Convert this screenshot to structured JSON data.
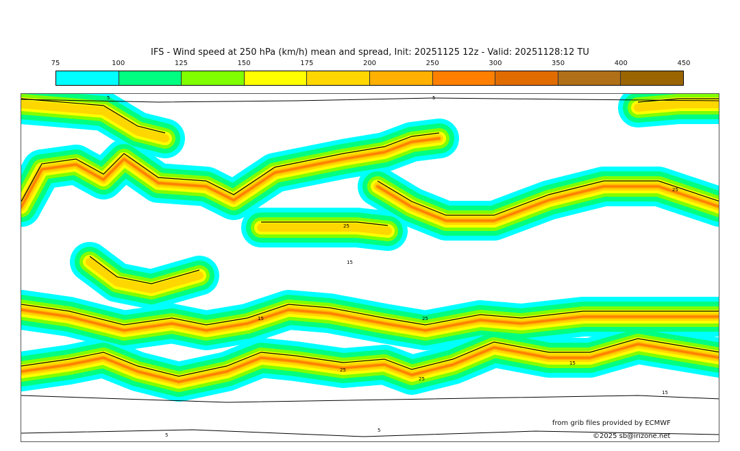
{
  "title": "IFS - Wind speed at 250 hPa (km/h) mean and spread, Init: 20251125 12z - Valid: 20251128:12 TU",
  "colorbar": {
    "ticks": [
      "75",
      "100",
      "125",
      "150",
      "175",
      "200",
      "250",
      "300",
      "350",
      "400",
      "450"
    ],
    "colors": [
      "#00ffff",
      "#00ff80",
      "#80ff00",
      "#ffff00",
      "#ffd700",
      "#ffb000",
      "#ff8000",
      "#e06c00",
      "#b07018",
      "#9a6400"
    ]
  },
  "contour_labels": [
    "5",
    "15",
    "25"
  ],
  "credits": {
    "source": "from grib files provided by ECMWF",
    "copyright": "©2025 sb@irizone.net"
  }
}
